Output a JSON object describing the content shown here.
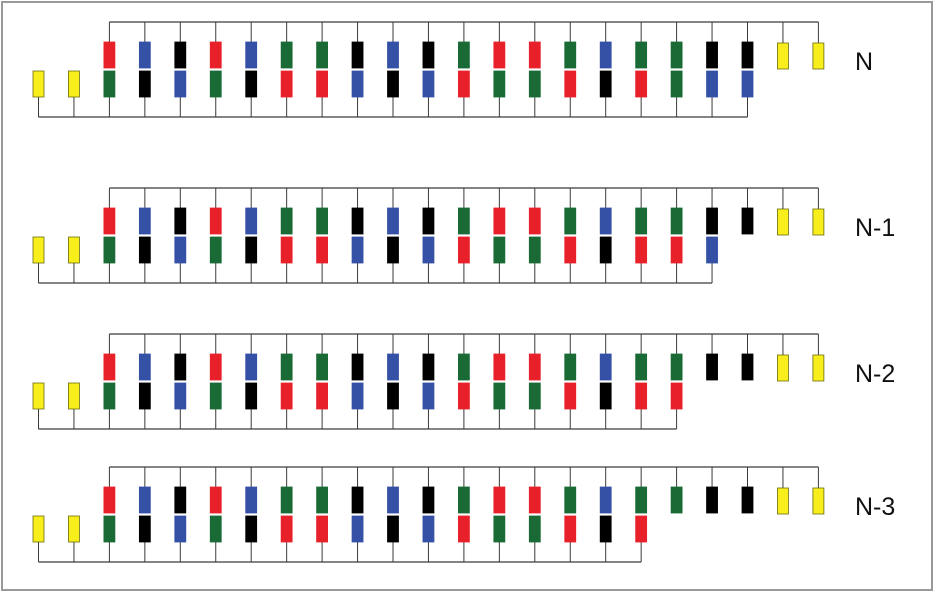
{
  "colors": {
    "R": "#e8202a",
    "B": "#3551a6",
    "K": "#000000",
    "G": "#1a6a36",
    "Y": "#f7ee1c",
    "wire": "#3a3a3a"
  },
  "rows": [
    {
      "label": "N",
      "top": [
        "R",
        "B",
        "K",
        "R",
        "B",
        "G",
        "G",
        "K",
        "B",
        "K",
        "G",
        "R",
        "R",
        "G",
        "B",
        "G",
        "G",
        "K",
        "K",
        "Y",
        "Y"
      ],
      "bottom": [
        "Y",
        "Y",
        "G",
        "K",
        "B",
        "G",
        "K",
        "R",
        "R",
        "B",
        "K",
        "B",
        "R",
        "G",
        "G",
        "R",
        "K",
        "R",
        "G",
        "B",
        "B"
      ]
    },
    {
      "label": "N-1",
      "top": [
        "R",
        "B",
        "K",
        "R",
        "B",
        "G",
        "G",
        "K",
        "B",
        "K",
        "G",
        "R",
        "R",
        "G",
        "B",
        "G",
        "G",
        "K",
        "K",
        "Y",
        "Y"
      ],
      "bottom": [
        "Y",
        "Y",
        "G",
        "K",
        "B",
        "G",
        "K",
        "R",
        "R",
        "B",
        "K",
        "B",
        "R",
        "G",
        "G",
        "R",
        "K",
        "R",
        "R",
        "B"
      ]
    },
    {
      "label": "N-2",
      "top": [
        "R",
        "B",
        "K",
        "R",
        "B",
        "G",
        "G",
        "K",
        "B",
        "K",
        "G",
        "R",
        "R",
        "G",
        "B",
        "G",
        "G",
        "K",
        "K",
        "Y",
        "Y"
      ],
      "bottom": [
        "Y",
        "Y",
        "G",
        "K",
        "B",
        "G",
        "K",
        "R",
        "R",
        "B",
        "K",
        "B",
        "R",
        "G",
        "G",
        "R",
        "K",
        "R",
        "R"
      ]
    },
    {
      "label": "N-3",
      "top": [
        "R",
        "B",
        "K",
        "R",
        "B",
        "G",
        "G",
        "K",
        "B",
        "K",
        "G",
        "R",
        "R",
        "G",
        "B",
        "G",
        "G",
        "K",
        "K",
        "Y",
        "Y"
      ],
      "bottom": [
        "Y",
        "Y",
        "G",
        "K",
        "B",
        "G",
        "K",
        "R",
        "R",
        "B",
        "K",
        "B",
        "R",
        "G",
        "G",
        "R",
        "K",
        "R"
      ]
    }
  ]
}
